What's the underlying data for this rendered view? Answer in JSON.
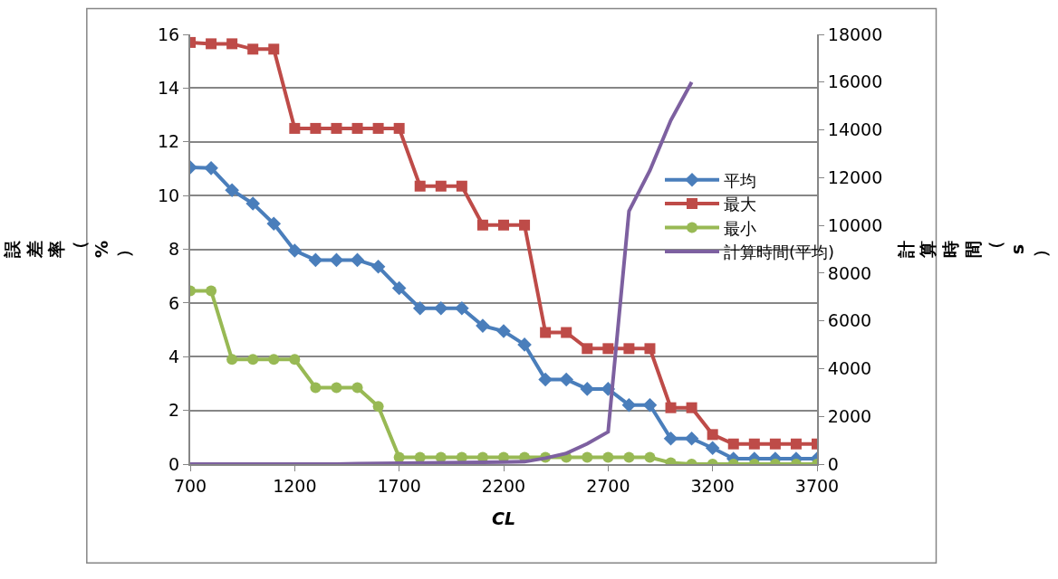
{
  "chart_data": {
    "type": "line",
    "xlabel": "CL",
    "ylabel": "誤差率（%）",
    "y2label": "計算時間（s）",
    "x": [
      700,
      800,
      900,
      1000,
      1100,
      1200,
      1300,
      1400,
      1500,
      1600,
      1700,
      1800,
      1900,
      2000,
      2100,
      2200,
      2300,
      2400,
      2500,
      2600,
      2700,
      2800,
      2900,
      3000,
      3100,
      3200,
      3300,
      3400,
      3500,
      3600,
      3700
    ],
    "series": [
      {
        "name": "平均",
        "color": "#4a7ebb",
        "marker": "diamond",
        "values": [
          11.05,
          11.02,
          10.2,
          9.7,
          8.95,
          7.95,
          7.6,
          7.6,
          7.6,
          7.35,
          6.55,
          5.8,
          5.8,
          5.8,
          5.15,
          4.95,
          4.45,
          3.15,
          3.15,
          2.8,
          2.8,
          2.2,
          2.2,
          0.95,
          0.95,
          0.6,
          0.2,
          0.2,
          0.2,
          0.2,
          0.2
        ]
      },
      {
        "name": "最大",
        "color": "#be4b48",
        "marker": "square",
        "values": [
          15.7,
          15.65,
          15.65,
          15.45,
          15.45,
          12.5,
          12.5,
          12.5,
          12.5,
          12.5,
          12.5,
          10.35,
          10.35,
          10.35,
          8.9,
          8.9,
          8.9,
          4.9,
          4.9,
          4.3,
          4.3,
          4.3,
          4.3,
          2.1,
          2.1,
          1.1,
          0.75,
          0.75,
          0.75,
          0.75,
          0.75
        ]
      },
      {
        "name": "最小",
        "color": "#98b954",
        "marker": "circle",
        "values": [
          6.45,
          6.45,
          3.9,
          3.9,
          3.9,
          3.9,
          2.85,
          2.85,
          2.85,
          2.15,
          0.25,
          0.25,
          0.25,
          0.25,
          0.25,
          0.25,
          0.25,
          0.25,
          0.25,
          0.25,
          0.25,
          0.25,
          0.25,
          0.05,
          0,
          0,
          0,
          0,
          0,
          0,
          0
        ]
      },
      {
        "name": "計算時間(平均)",
        "color": "#7d60a0",
        "marker": "none",
        "axis": "y2",
        "values": [
          0,
          0,
          0,
          0,
          0,
          0,
          0,
          0,
          20,
          30,
          40,
          50,
          60,
          70,
          80,
          90,
          100,
          250,
          450,
          850,
          1350,
          10600,
          12300,
          14400,
          16000,
          null,
          null,
          null,
          null,
          null,
          null
        ]
      }
    ],
    "xlim": [
      700,
      3700
    ],
    "xticks": [
      700,
      1200,
      1700,
      2200,
      2700,
      3200,
      3700
    ],
    "ylim": [
      0,
      16
    ],
    "yticks": [
      0,
      2,
      4,
      6,
      8,
      10,
      12,
      14,
      16
    ],
    "y2lim": [
      0,
      18000
    ],
    "y2ticks": [
      0,
      2000,
      4000,
      6000,
      8000,
      10000,
      12000,
      14000,
      16000,
      18000
    ],
    "grid": "y",
    "legend": "right",
    "line_style": "solid"
  }
}
